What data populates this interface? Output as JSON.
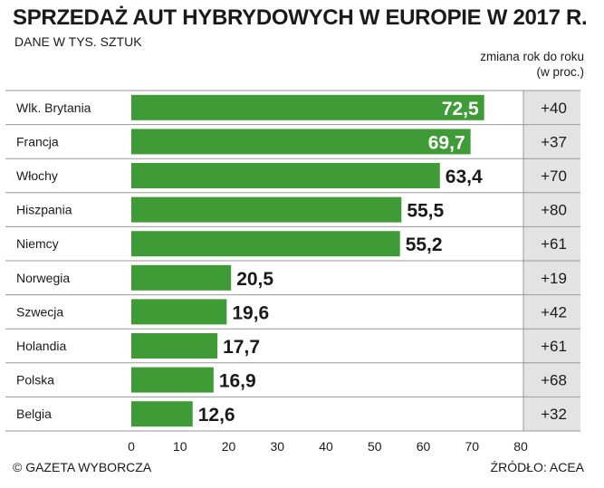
{
  "header": {
    "title": "SPRZEDAŻ AUT HYBRYDOWYCH W EUROPIE W 2017 R.",
    "subtitle": "DANE W TYS. SZTUK"
  },
  "change_header": {
    "line1": "zmiana rok do roku",
    "line2": "(w proc.)"
  },
  "footer": {
    "copyright": "© GAZETA WYBORCZA",
    "source": "ŹRÓDŁO: ACEA"
  },
  "colors": {
    "bar": "#3f9b35",
    "change_bg": "#e3e3e3",
    "row_border": "#9a9a9a"
  },
  "chart_data": {
    "type": "bar",
    "orientation": "horizontal",
    "categories": [
      "Wlk. Brytania",
      "Francja",
      "Włochy",
      "Hiszpania",
      "Niemcy",
      "Norwegia",
      "Szwecja",
      "Holandia",
      "Polska",
      "Belgia"
    ],
    "values": [
      72.5,
      69.7,
      63.4,
      55.5,
      55.2,
      20.5,
      19.6,
      17.7,
      16.9,
      12.6
    ],
    "value_labels": [
      "72,5",
      "69,7",
      "63,4",
      "55,5",
      "55,2",
      "20,5",
      "19,6",
      "17,7",
      "16,9",
      "12,6"
    ],
    "change_labels": [
      "+40",
      "+37",
      "+70",
      "+80",
      "+61",
      "+19",
      "+42",
      "+61",
      "+68",
      "+32"
    ],
    "xlim": [
      0,
      80
    ],
    "ticks": [
      0,
      10,
      20,
      30,
      40,
      50,
      60,
      70,
      80
    ],
    "grid": false,
    "legend": "none"
  }
}
